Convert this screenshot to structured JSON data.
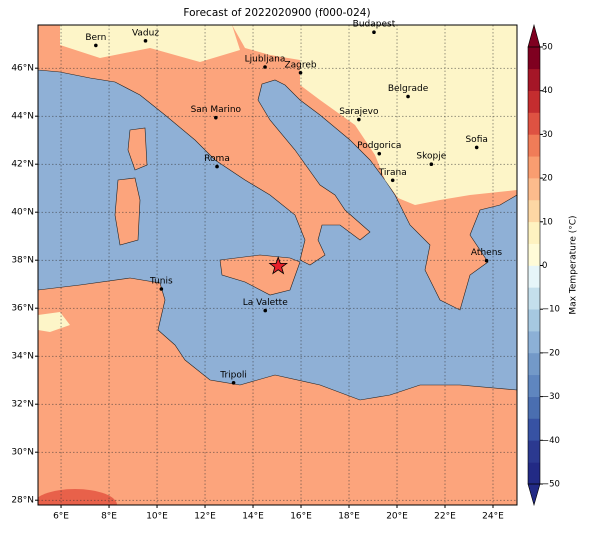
{
  "title": "Forecast of 2022020900 (f000-024)",
  "map": {
    "xlim": [
      5.04,
      25
    ],
    "ylim": [
      27.8,
      47.8
    ],
    "xticks": [
      {
        "value": 6,
        "label": "6°E"
      },
      {
        "value": 8,
        "label": "8°E"
      },
      {
        "value": 10,
        "label": "10°E"
      },
      {
        "value": 12,
        "label": "12°E"
      },
      {
        "value": 14,
        "label": "14°E"
      },
      {
        "value": 16,
        "label": "16°E"
      },
      {
        "value": 18,
        "label": "18°E"
      },
      {
        "value": 20,
        "label": "20°E"
      },
      {
        "value": 22,
        "label": "22°E"
      },
      {
        "value": 24,
        "label": "24°E"
      }
    ],
    "yticks": [
      {
        "value": 28,
        "label": "28°N"
      },
      {
        "value": 30,
        "label": "30°N"
      },
      {
        "value": 32,
        "label": "32°N"
      },
      {
        "value": 34,
        "label": "34°N"
      },
      {
        "value": 36,
        "label": "36°N"
      },
      {
        "value": 38,
        "label": "38°N"
      },
      {
        "value": 40,
        "label": "40°N"
      },
      {
        "value": 42,
        "label": "42°N"
      },
      {
        "value": 44,
        "label": "44°N"
      },
      {
        "value": 46,
        "label": "46°N"
      }
    ],
    "grid": true,
    "cities": [
      {
        "name": "Bern",
        "lon": 7.45,
        "lat": 46.95
      },
      {
        "name": "Vaduz",
        "lon": 9.52,
        "lat": 47.14
      },
      {
        "name": "Budapest",
        "lon": 19.04,
        "lat": 47.5
      },
      {
        "name": "Ljubljana",
        "lon": 14.5,
        "lat": 46.05
      },
      {
        "name": "Zagreb",
        "lon": 15.98,
        "lat": 45.81
      },
      {
        "name": "Belgrade",
        "lon": 20.46,
        "lat": 44.82
      },
      {
        "name": "Sarajevo",
        "lon": 18.41,
        "lat": 43.86
      },
      {
        "name": "San Marino",
        "lon": 12.45,
        "lat": 43.94
      },
      {
        "name": "Sofia",
        "lon": 23.32,
        "lat": 42.7
      },
      {
        "name": "Podgorica",
        "lon": 19.26,
        "lat": 42.44
      },
      {
        "name": "Skopje",
        "lon": 21.43,
        "lat": 42.0
      },
      {
        "name": "Roma",
        "lon": 12.5,
        "lat": 41.9
      },
      {
        "name": "Tirana",
        "lon": 19.82,
        "lat": 41.33
      },
      {
        "name": "Athens",
        "lon": 23.73,
        "lat": 37.98
      },
      {
        "name": "Tunis",
        "lon": 10.18,
        "lat": 36.8
      },
      {
        "name": "La Valette",
        "lon": 14.51,
        "lat": 35.9
      },
      {
        "name": "Tripoli",
        "lon": 13.19,
        "lat": 32.89
      }
    ],
    "marker": {
      "lon": 15.05,
      "lat": 37.75,
      "color": "#e8202a"
    }
  },
  "colorbar": {
    "label": "Max Temperature (°C)",
    "ticks": [
      {
        "value": -50,
        "label": "−50"
      },
      {
        "value": -40,
        "label": "−40"
      },
      {
        "value": -30,
        "label": "−30"
      },
      {
        "value": -20,
        "label": "−20"
      },
      {
        "value": -10,
        "label": "−10"
      },
      0,
      10,
      20,
      30,
      40,
      50
    ],
    "colors": [
      "#222a85",
      "#2b3990",
      "#3752a3",
      "#4a6eb0",
      "#5f86bf",
      "#7399c8",
      "#8cb0d6",
      "#a6c8e0",
      "#c4dfec",
      "#e6f5f9",
      "#fffbd8",
      "#fef2c0",
      "#fdd7a4",
      "#fcbb8c",
      "#f99d70",
      "#f07c58",
      "#de5242",
      "#c42d2f",
      "#a51627",
      "#7f0020"
    ]
  }
}
